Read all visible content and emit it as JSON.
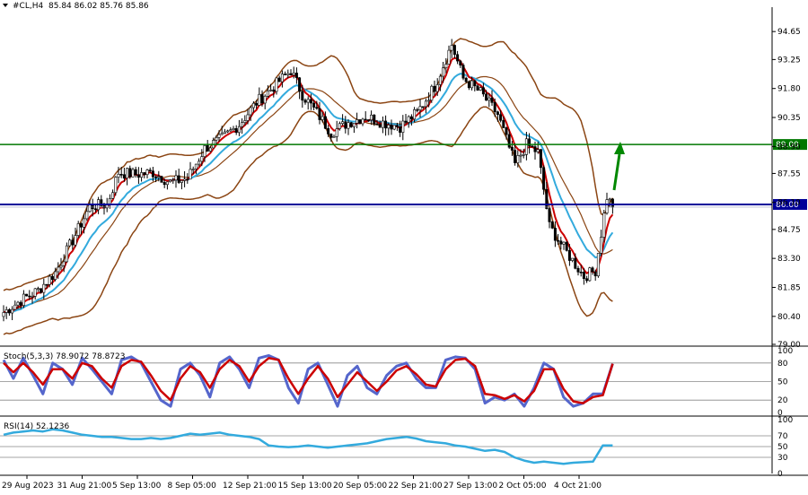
{
  "header": {
    "symbol_label": "#CL,H4",
    "ohlc": "85.84 86.02 85.76 85.86"
  },
  "colors": {
    "bull_candle": "#ffffff",
    "bear_candle": "#000000",
    "bollinger": "#8b4513",
    "ma_fast": "#cc0000",
    "ma_slow": "#33aadd",
    "resistance": "#007700",
    "price_line": "#000099",
    "stoch_main": "#5566cc",
    "stoch_signal": "#cc0000",
    "rsi_line": "#33aadd",
    "arrow": "#008800"
  },
  "chart_data": [
    {
      "type": "candlestick",
      "panel": "main",
      "ylim": [
        79.0,
        95.6
      ],
      "y_ticks": [
        "94.65",
        "93.25",
        "91.80",
        "90.35",
        "88.90",
        "87.55",
        "86.10",
        "84.75",
        "83.30",
        "81.85",
        "80.40",
        "79.00"
      ],
      "x_ticks": [
        "29 Aug 2023",
        "31 Aug 21:00",
        "5 Sep 13:00",
        "8 Sep 05:00",
        "12 Sep 21:00",
        "15 Sep 13:00",
        "20 Sep 05:00",
        "22 Sep 21:00",
        "27 Sep 13:00",
        "2 Oct 05:00",
        "4 Oct 21:00"
      ],
      "price_path": [
        [
          0,
          80.6
        ],
        [
          6,
          81.2
        ],
        [
          12,
          81.7
        ],
        [
          18,
          82.6
        ],
        [
          24,
          84.2
        ],
        [
          30,
          85.9
        ],
        [
          36,
          86.0
        ],
        [
          40,
          87.6
        ],
        [
          46,
          87.5
        ],
        [
          52,
          87.6
        ],
        [
          58,
          87.1
        ],
        [
          64,
          87.3
        ],
        [
          70,
          88.8
        ],
        [
          76,
          89.3
        ],
        [
          82,
          90.0
        ],
        [
          88,
          91.1
        ],
        [
          94,
          91.9
        ],
        [
          100,
          92.7
        ],
        [
          104,
          91.5
        ],
        [
          110,
          90.4
        ],
        [
          114,
          89.6
        ],
        [
          120,
          90.1
        ],
        [
          126,
          90.4
        ],
        [
          132,
          90.1
        ],
        [
          138,
          89.9
        ],
        [
          144,
          90.6
        ],
        [
          150,
          91.9
        ],
        [
          156,
          94.0
        ],
        [
          160,
          92.3
        ],
        [
          166,
          91.6
        ],
        [
          172,
          90.5
        ],
        [
          178,
          88.0
        ],
        [
          182,
          89.0
        ],
        [
          186,
          88.6
        ],
        [
          190,
          84.9
        ],
        [
          196,
          83.6
        ],
        [
          202,
          82.4
        ],
        [
          206,
          82.7
        ],
        [
          210,
          86.4
        ],
        [
          212,
          85.86
        ]
      ],
      "resistance_level": 89.0,
      "resistance_label": "89.00",
      "price_level": 86.0,
      "price_label": "86.00"
    },
    {
      "type": "line",
      "panel": "stochastic",
      "label": "Stoch(5,3,3) 78.9072 78.8723",
      "ylim": [
        0,
        100
      ],
      "y_ticks": [
        "100",
        "80",
        "50",
        "20",
        "0"
      ],
      "levels": [
        80,
        50,
        20
      ],
      "series": [
        {
          "values": [
            85,
            55,
            88,
            60,
            30,
            80,
            70,
            45,
            88,
            70,
            50,
            30,
            85,
            90,
            80,
            50,
            20,
            10,
            70,
            80,
            60,
            25,
            80,
            90,
            70,
            40,
            88,
            92,
            85,
            40,
            15,
            70,
            80,
            45,
            10,
            60,
            75,
            40,
            30,
            60,
            75,
            80,
            55,
            40,
            40,
            85,
            90,
            88,
            70,
            15,
            25,
            20,
            30,
            10,
            40,
            80,
            70,
            25,
            10,
            15,
            30,
            30,
            78.9
          ]
        },
        {
          "values": [
            80,
            65,
            80,
            65,
            45,
            70,
            70,
            55,
            80,
            75,
            55,
            40,
            75,
            85,
            82,
            60,
            35,
            20,
            55,
            75,
            65,
            40,
            70,
            85,
            75,
            50,
            75,
            88,
            85,
            55,
            30,
            55,
            75,
            55,
            25,
            45,
            65,
            50,
            35,
            50,
            68,
            75,
            62,
            45,
            42,
            70,
            85,
            87,
            75,
            30,
            28,
            22,
            28,
            18,
            35,
            70,
            70,
            38,
            18,
            15,
            25,
            28,
            78.9
          ]
        }
      ]
    },
    {
      "type": "line",
      "panel": "rsi",
      "label": "RSI(14) 52.1236",
      "ylim": [
        0,
        100
      ],
      "y_ticks": [
        "100",
        "70",
        "50",
        "30",
        "0"
      ],
      "levels": [
        70,
        50,
        30
      ],
      "series": [
        {
          "values": [
            72,
            76,
            78,
            80,
            78,
            82,
            80,
            76,
            72,
            70,
            68,
            68,
            66,
            64,
            64,
            66,
            64,
            66,
            70,
            74,
            72,
            74,
            76,
            72,
            70,
            68,
            64,
            52,
            50,
            49,
            50,
            52,
            50,
            48,
            50,
            52,
            54,
            56,
            60,
            64,
            66,
            68,
            65,
            60,
            58,
            56,
            52,
            50,
            46,
            42,
            44,
            40,
            30,
            24,
            20,
            22,
            20,
            18,
            20,
            21,
            22,
            52.1,
            52.1
          ]
        }
      ]
    }
  ]
}
